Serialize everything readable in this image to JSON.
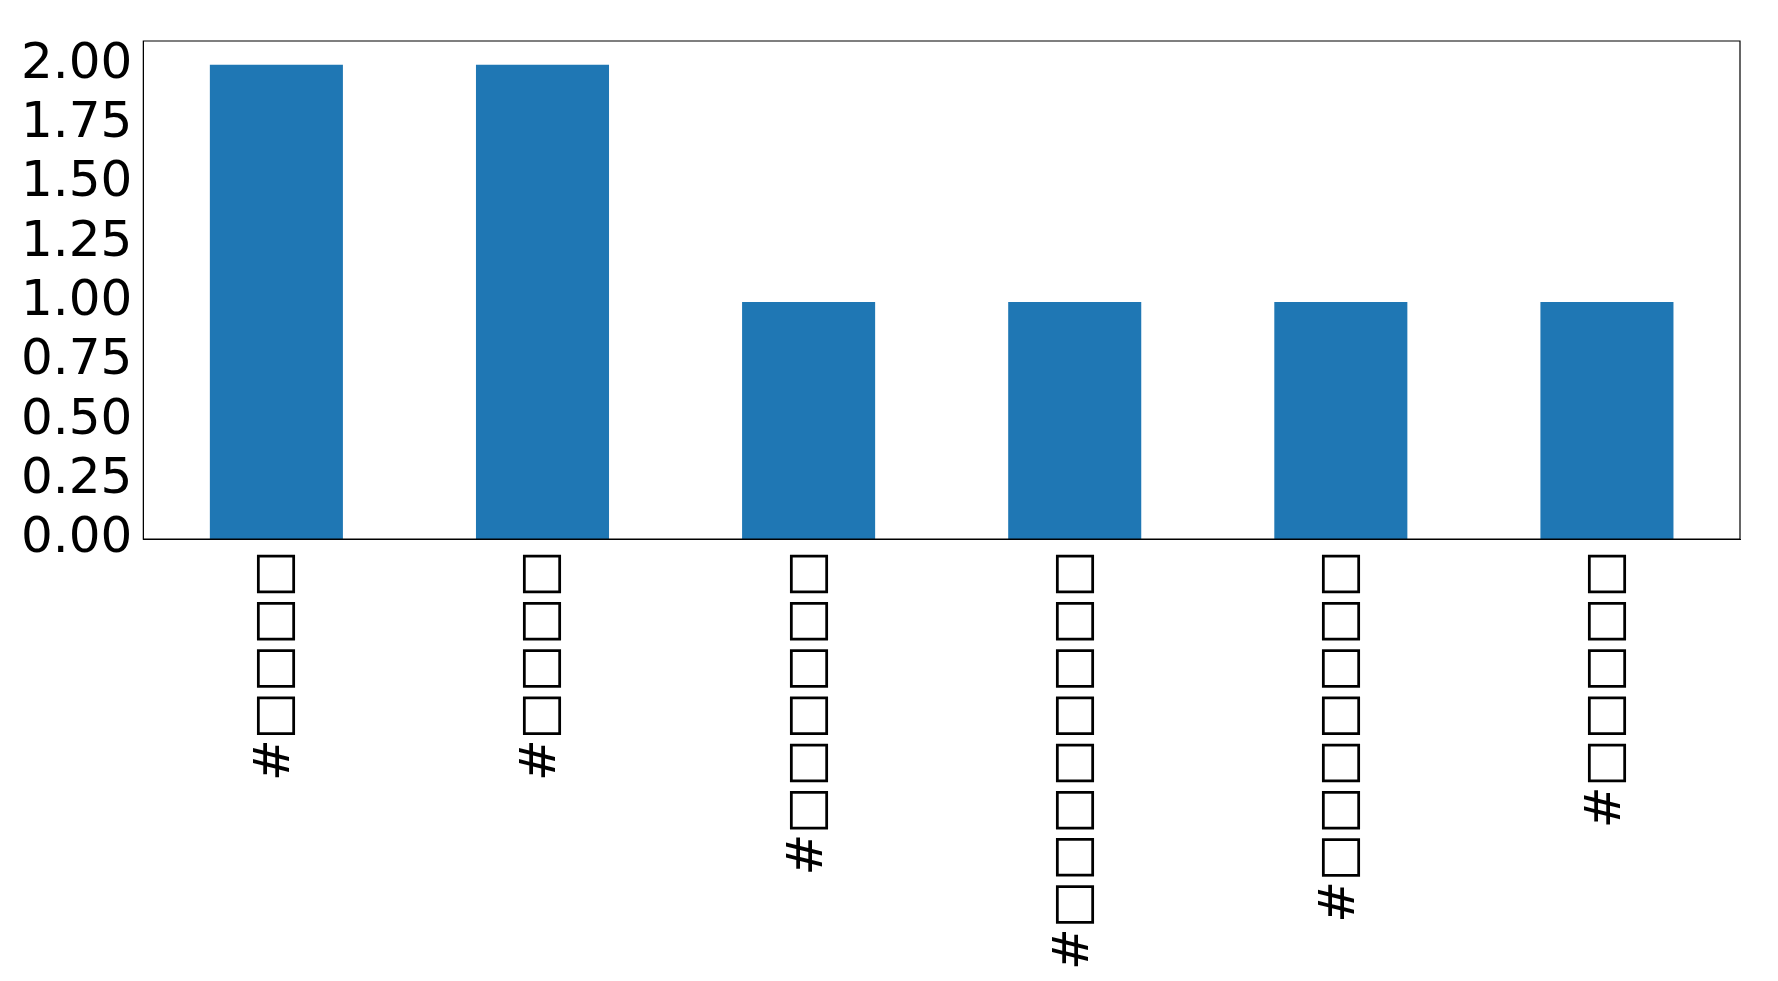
{
  "chart_data": {
    "type": "bar",
    "categories": [
      "#□□□□",
      "#□□□□",
      "#□□□□□□",
      "#□□□□□□□□",
      "#□□□□□□□",
      "#□□□□□"
    ],
    "values": [
      2,
      2,
      1,
      1,
      1,
      1
    ],
    "color": "#1f77b4",
    "ylim": [
      0,
      2.1
    ],
    "yticks": [
      {
        "value": 0,
        "label": "0.00"
      },
      {
        "value": 0.25,
        "label": "0.25"
      },
      {
        "value": 0.5,
        "label": "0.50"
      },
      {
        "value": 0.75,
        "label": "0.75"
      },
      {
        "value": 1,
        "label": "1.00"
      },
      {
        "value": 1.25,
        "label": "1.25"
      },
      {
        "value": 1.5,
        "label": "1.50"
      },
      {
        "value": 1.75,
        "label": "1.75"
      },
      {
        "value": 2,
        "label": "2.00"
      }
    ],
    "grid": false,
    "legend": false
  }
}
